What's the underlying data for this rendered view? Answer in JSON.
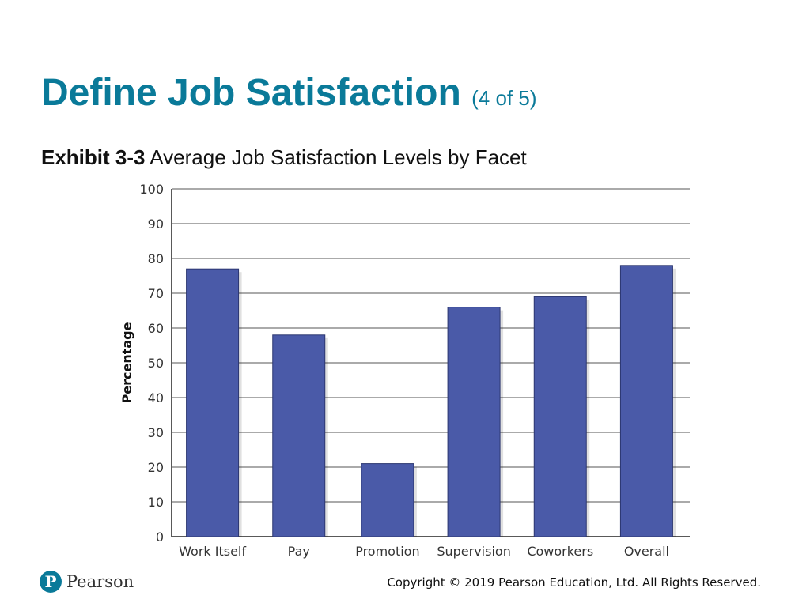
{
  "slide": {
    "title": "Define Job Satisfaction",
    "part": "(4 of 5)",
    "exhibit_label": "Exhibit 3-3",
    "exhibit_caption": "Average Job Satisfaction Levels by Facet"
  },
  "footer": {
    "brand": "Pearson",
    "copyright": "Copyright © 2019 Pearson Education, Ltd. All Rights Reserved."
  },
  "chart_data": {
    "type": "bar",
    "categories": [
      "Work Itself",
      "Pay",
      "Promotion",
      "Supervision",
      "Coworkers",
      "Overall"
    ],
    "values": [
      77,
      58,
      21,
      66,
      69,
      78
    ],
    "title": "",
    "xlabel": "",
    "ylabel": "Percentage",
    "ylim": [
      0,
      100
    ],
    "yticks": [
      0,
      10,
      20,
      30,
      40,
      50,
      60,
      70,
      80,
      90,
      100
    ],
    "grid": true,
    "bar_color": "#4a5aa8"
  }
}
